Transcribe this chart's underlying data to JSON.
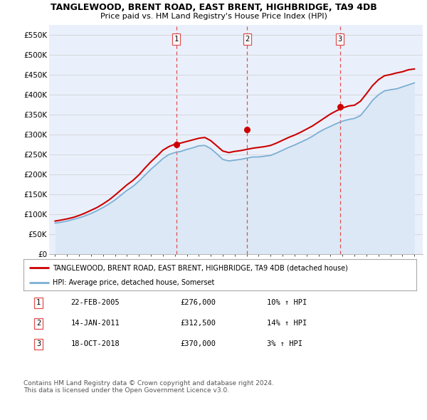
{
  "title": "TANGLEWOOD, BRENT ROAD, EAST BRENT, HIGHBRIDGE, TA9 4DB",
  "subtitle": "Price paid vs. HM Land Registry's House Price Index (HPI)",
  "ylim": [
    0,
    575000
  ],
  "yticks": [
    0,
    50000,
    100000,
    150000,
    200000,
    250000,
    300000,
    350000,
    400000,
    450000,
    500000,
    550000
  ],
  "ytick_labels": [
    "£0",
    "£50K",
    "£100K",
    "£150K",
    "£200K",
    "£250K",
    "£300K",
    "£350K",
    "£400K",
    "£450K",
    "£500K",
    "£550K"
  ],
  "sale_prices": [
    276000,
    312500,
    370000
  ],
  "sale_labels": [
    "1",
    "2",
    "3"
  ],
  "sale_year_floats": [
    2005.12,
    2011.04,
    2018.79
  ],
  "vline_color": "#e05050",
  "red_line_color": "#cc0000",
  "blue_line_color": "#7bafd4",
  "blue_fill_color": "#dce8f5",
  "legend_red_label": "TANGLEWOOD, BRENT ROAD, EAST BRENT, HIGHBRIDGE, TA9 4DB (detached house)",
  "legend_blue_label": "HPI: Average price, detached house, Somerset",
  "table_data": [
    [
      "1",
      "22-FEB-2005",
      "£276,000",
      "10% ↑ HPI"
    ],
    [
      "2",
      "14-JAN-2011",
      "£312,500",
      "14% ↑ HPI"
    ],
    [
      "3",
      "18-OCT-2018",
      "£370,000",
      "3% ↑ HPI"
    ]
  ],
  "footnote": "Contains HM Land Registry data © Crown copyright and database right 2024.\nThis data is licensed under the Open Government Licence v3.0.",
  "background_color": "#ffffff",
  "plot_bg_color": "#eaf0fb",
  "grid_color": "#cccccc"
}
